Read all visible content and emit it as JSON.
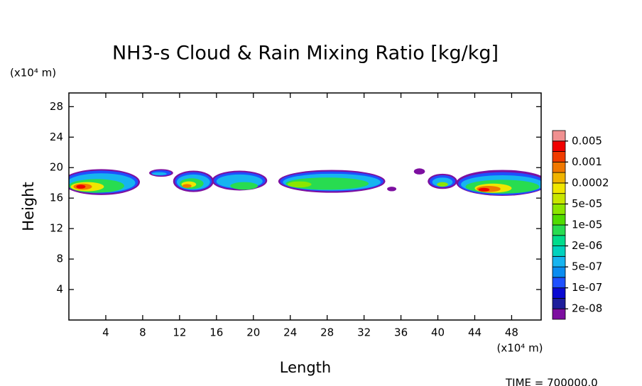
{
  "chart_data": {
    "type": "contour",
    "title": "NH3-s Cloud & Rain Mixing Ratio [kg/kg]",
    "xlabel": "Length",
    "ylabel": "Height",
    "xunit": "(x10⁴ m)",
    "yunit": "(x10⁴ m)",
    "annotation": "TIME = 700000.0",
    "xlim": [
      0,
      51.2
    ],
    "ylim": [
      0,
      29.8
    ],
    "xticks": [
      4,
      8,
      12,
      16,
      20,
      24,
      28,
      32,
      36,
      40,
      44,
      48
    ],
    "yticks": [
      4,
      8,
      12,
      16,
      20,
      24,
      28
    ],
    "colorbar": {
      "colors": [
        "#7d0fa0",
        "#1e1e9b",
        "#0a0ad2",
        "#1e50ff",
        "#0a8cf0",
        "#16b4f0",
        "#00d2be",
        "#00dc8c",
        "#28dc50",
        "#50dc00",
        "#8ce600",
        "#c8e600",
        "#f0e600",
        "#f0b400",
        "#f07800",
        "#f03c00",
        "#f00000",
        "#f09090"
      ],
      "ticks": [
        {
          "value": 2e-08,
          "label": "2e-08"
        },
        {
          "value": 1e-07,
          "label": "1e-07"
        },
        {
          "value": 5e-07,
          "label": "5e-07"
        },
        {
          "value": 2e-06,
          "label": "2e-06"
        },
        {
          "value": 1e-05,
          "label": "1e-05"
        },
        {
          "value": 5e-05,
          "label": "5e-05"
        },
        0.0002,
        0.001,
        0.005
      ]
    },
    "field": [
      {
        "cx": 3.5,
        "cy": 18.1,
        "rx": 4.2,
        "ry": 1.7,
        "color": "#7d0fa0"
      },
      {
        "cx": 3.5,
        "cy": 18.1,
        "rx": 4.0,
        "ry": 1.5,
        "color": "#1e50ff"
      },
      {
        "cx": 3.5,
        "cy": 18.0,
        "rx": 3.7,
        "ry": 1.25,
        "color": "#16b4f0"
      },
      {
        "cx": 3.0,
        "cy": 17.6,
        "rx": 3.0,
        "ry": 0.9,
        "color": "#28dc50"
      },
      {
        "cx": 2.0,
        "cy": 17.5,
        "rx": 1.8,
        "ry": 0.6,
        "color": "#f0e600"
      },
      {
        "cx": 1.5,
        "cy": 17.5,
        "rx": 1.0,
        "ry": 0.4,
        "color": "#f07800"
      },
      {
        "cx": 1.3,
        "cy": 17.5,
        "rx": 0.5,
        "ry": 0.25,
        "color": "#f00000"
      },
      {
        "cx": 10.0,
        "cy": 19.3,
        "rx": 1.3,
        "ry": 0.5,
        "color": "#7d0fa0"
      },
      {
        "cx": 10.0,
        "cy": 19.3,
        "rx": 1.1,
        "ry": 0.35,
        "color": "#1e50ff"
      },
      {
        "cx": 9.8,
        "cy": 19.2,
        "rx": 0.8,
        "ry": 0.2,
        "color": "#16b4f0"
      },
      {
        "cx": 13.5,
        "cy": 18.2,
        "rx": 2.2,
        "ry": 1.4,
        "color": "#7d0fa0"
      },
      {
        "cx": 13.5,
        "cy": 18.2,
        "rx": 2.0,
        "ry": 1.2,
        "color": "#1e50ff"
      },
      {
        "cx": 13.5,
        "cy": 18.1,
        "rx": 1.8,
        "ry": 1.0,
        "color": "#16b4f0"
      },
      {
        "cx": 13.3,
        "cy": 17.9,
        "rx": 1.3,
        "ry": 0.7,
        "color": "#28dc50"
      },
      {
        "cx": 13.0,
        "cy": 17.8,
        "rx": 0.8,
        "ry": 0.4,
        "color": "#f0e600"
      },
      {
        "cx": 12.8,
        "cy": 17.6,
        "rx": 0.5,
        "ry": 0.25,
        "color": "#f07800"
      },
      {
        "cx": 18.5,
        "cy": 18.3,
        "rx": 3.0,
        "ry": 1.3,
        "color": "#7d0fa0"
      },
      {
        "cx": 18.5,
        "cy": 18.3,
        "rx": 2.8,
        "ry": 1.1,
        "color": "#1e50ff"
      },
      {
        "cx": 18.5,
        "cy": 18.2,
        "rx": 2.5,
        "ry": 0.9,
        "color": "#16b4f0"
      },
      {
        "cx": 19.0,
        "cy": 17.6,
        "rx": 1.5,
        "ry": 0.5,
        "color": "#28dc50"
      },
      {
        "cx": 28.5,
        "cy": 18.2,
        "rx": 5.8,
        "ry": 1.5,
        "color": "#7d0fa0"
      },
      {
        "cx": 28.5,
        "cy": 18.2,
        "rx": 5.6,
        "ry": 1.3,
        "color": "#1e50ff"
      },
      {
        "cx": 28.5,
        "cy": 18.1,
        "rx": 5.3,
        "ry": 1.1,
        "color": "#16b4f0"
      },
      {
        "cx": 28.0,
        "cy": 17.9,
        "rx": 4.5,
        "ry": 0.8,
        "color": "#28dc50"
      },
      {
        "cx": 25.0,
        "cy": 17.8,
        "rx": 1.3,
        "ry": 0.4,
        "color": "#8ce600"
      },
      {
        "cx": 35.0,
        "cy": 17.2,
        "rx": 0.5,
        "ry": 0.3,
        "color": "#7d0fa0"
      },
      {
        "cx": 38.0,
        "cy": 19.5,
        "rx": 0.6,
        "ry": 0.4,
        "color": "#7d0fa0"
      },
      {
        "cx": 40.5,
        "cy": 18.2,
        "rx": 1.6,
        "ry": 1.0,
        "color": "#7d0fa0"
      },
      {
        "cx": 40.5,
        "cy": 18.2,
        "rx": 1.4,
        "ry": 0.8,
        "color": "#1e50ff"
      },
      {
        "cx": 40.5,
        "cy": 18.1,
        "rx": 1.1,
        "ry": 0.6,
        "color": "#16b4f0"
      },
      {
        "cx": 40.5,
        "cy": 17.8,
        "rx": 0.6,
        "ry": 0.3,
        "color": "#8ce600"
      },
      {
        "cx": 47.0,
        "cy": 18.0,
        "rx": 5.0,
        "ry": 1.7,
        "color": "#7d0fa0"
      },
      {
        "cx": 47.0,
        "cy": 17.9,
        "rx": 4.8,
        "ry": 1.5,
        "color": "#1e50ff"
      },
      {
        "cx": 47.0,
        "cy": 17.8,
        "rx": 4.5,
        "ry": 1.2,
        "color": "#16b4f0"
      },
      {
        "cx": 47.0,
        "cy": 17.5,
        "rx": 4.0,
        "ry": 0.9,
        "color": "#28dc50"
      },
      {
        "cx": 46.0,
        "cy": 17.3,
        "rx": 2.0,
        "ry": 0.6,
        "color": "#f0e600"
      },
      {
        "cx": 45.5,
        "cy": 17.2,
        "rx": 1.3,
        "ry": 0.4,
        "color": "#f07800"
      },
      {
        "cx": 45.0,
        "cy": 17.1,
        "rx": 0.6,
        "ry": 0.25,
        "color": "#f00000"
      }
    ]
  }
}
